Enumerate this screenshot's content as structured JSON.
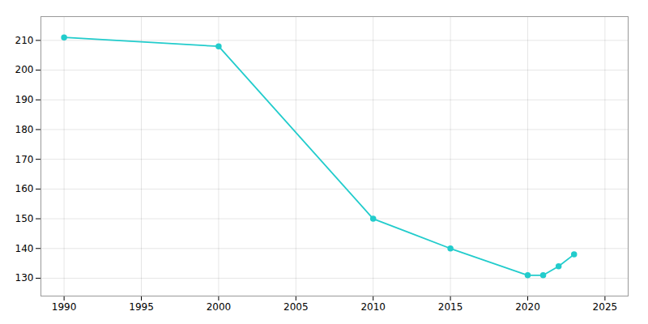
{
  "chart_data": {
    "type": "line",
    "x": [
      1990,
      2000,
      2010,
      2015,
      2020,
      2021,
      2022,
      2023
    ],
    "values": [
      211,
      208,
      150,
      140,
      131,
      131,
      134,
      138
    ],
    "color": "#22CCCC",
    "marker": "circle",
    "xlim": [
      1988.5,
      2026.5
    ],
    "ylim": [
      124,
      218
    ],
    "xticks": [
      1990,
      1995,
      2000,
      2005,
      2010,
      2015,
      2020,
      2025
    ],
    "yticks": [
      130,
      140,
      150,
      160,
      170,
      180,
      190,
      200,
      210
    ],
    "grid": true
  }
}
